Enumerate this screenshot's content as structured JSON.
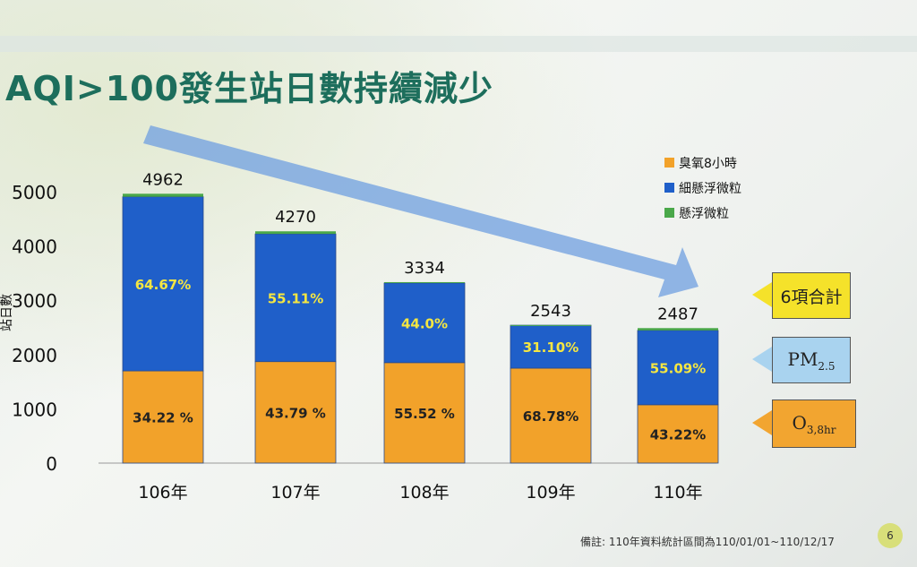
{
  "slide": {
    "title": "AQI>100發生站日數持續減少",
    "footnote": "備註: 110年資料統計區間為110/01/01~110/12/17",
    "page_number": "6"
  },
  "callouts": {
    "total_label": "6項合計",
    "pm_main": "PM",
    "pm_sub": "2.5",
    "o3_main": "O",
    "o3_sub": "3,8hr"
  },
  "colors": {
    "ozone": "#f2a22a",
    "pm25": "#1f5fc9",
    "pm10": "#4aa84a",
    "pm_pct_text": "#f4e642",
    "trend_arrow": "#6f9fe0"
  },
  "chart_data": {
    "type": "bar",
    "stacked": true,
    "title": "AQI>100發生站日數持續減少",
    "categories": [
      "106年",
      "107年",
      "108年",
      "109年",
      "110年"
    ],
    "totals": [
      4962,
      4270,
      3334,
      2543,
      2487
    ],
    "ylim": [
      0,
      5000
    ],
    "yticks": [
      0,
      1000,
      2000,
      3000,
      4000,
      5000
    ],
    "ylabel": "站日數",
    "legend": [
      "臭氧8小時",
      "細懸浮微粒",
      "懸浮微粒"
    ],
    "legend_position": "top-right",
    "series": [
      {
        "name": "臭氧8小時",
        "values": [
          1698,
          1870,
          1851,
          1749,
          1075
        ],
        "labels": [
          "34.22 %",
          "43.79 %",
          "55.52 %",
          "68.78%",
          "43.22%"
        ]
      },
      {
        "name": "細懸浮微粒",
        "values": [
          3209,
          2353,
          1467,
          791,
          1370
        ],
        "labels": [
          "64.67%",
          "55.11%",
          "44.0%",
          "31.10%",
          "55.09%"
        ]
      },
      {
        "name": "懸浮微粒",
        "values": [
          55,
          47,
          16,
          3,
          42
        ]
      }
    ]
  }
}
